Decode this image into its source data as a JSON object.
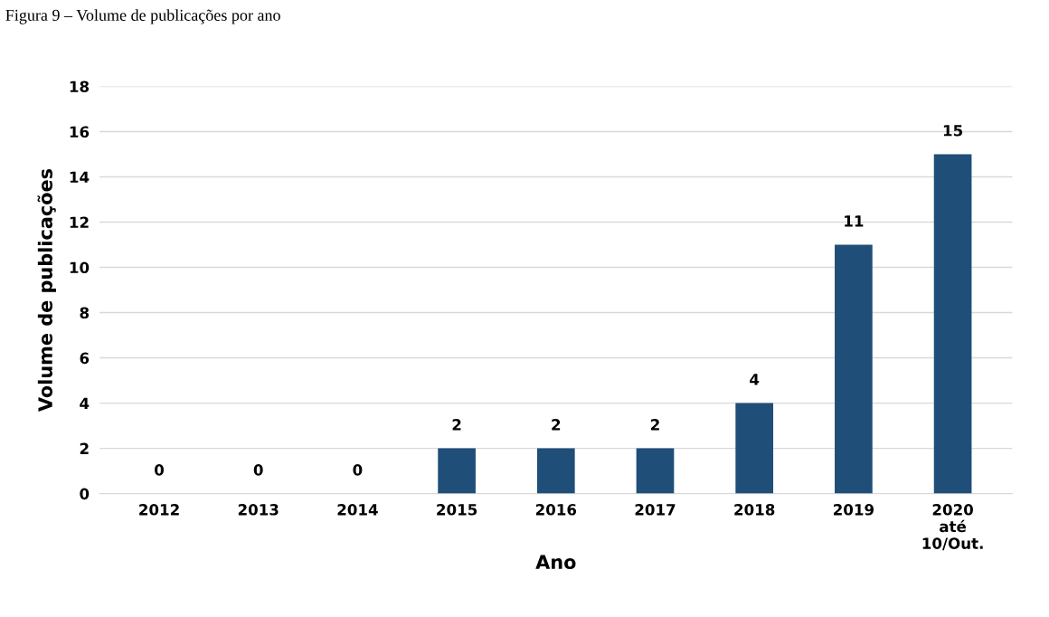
{
  "chart_data": {
    "type": "bar",
    "title": "Figura 9 – Volume de publicações por ano",
    "xlabel": "Ano",
    "ylabel": "Volume de publicações",
    "categories": [
      "2012",
      "2013",
      "2014",
      "2015",
      "2016",
      "2017",
      "2018",
      "2019",
      "2020\naté\n10/Out."
    ],
    "values": [
      0,
      0,
      0,
      2,
      2,
      2,
      4,
      11,
      15
    ],
    "color": "#1f4e79",
    "ylim": [
      0,
      18
    ],
    "yticks": [
      0,
      2,
      4,
      6,
      8,
      10,
      12,
      14,
      16,
      18
    ],
    "grid": "y",
    "data_labels": true
  }
}
